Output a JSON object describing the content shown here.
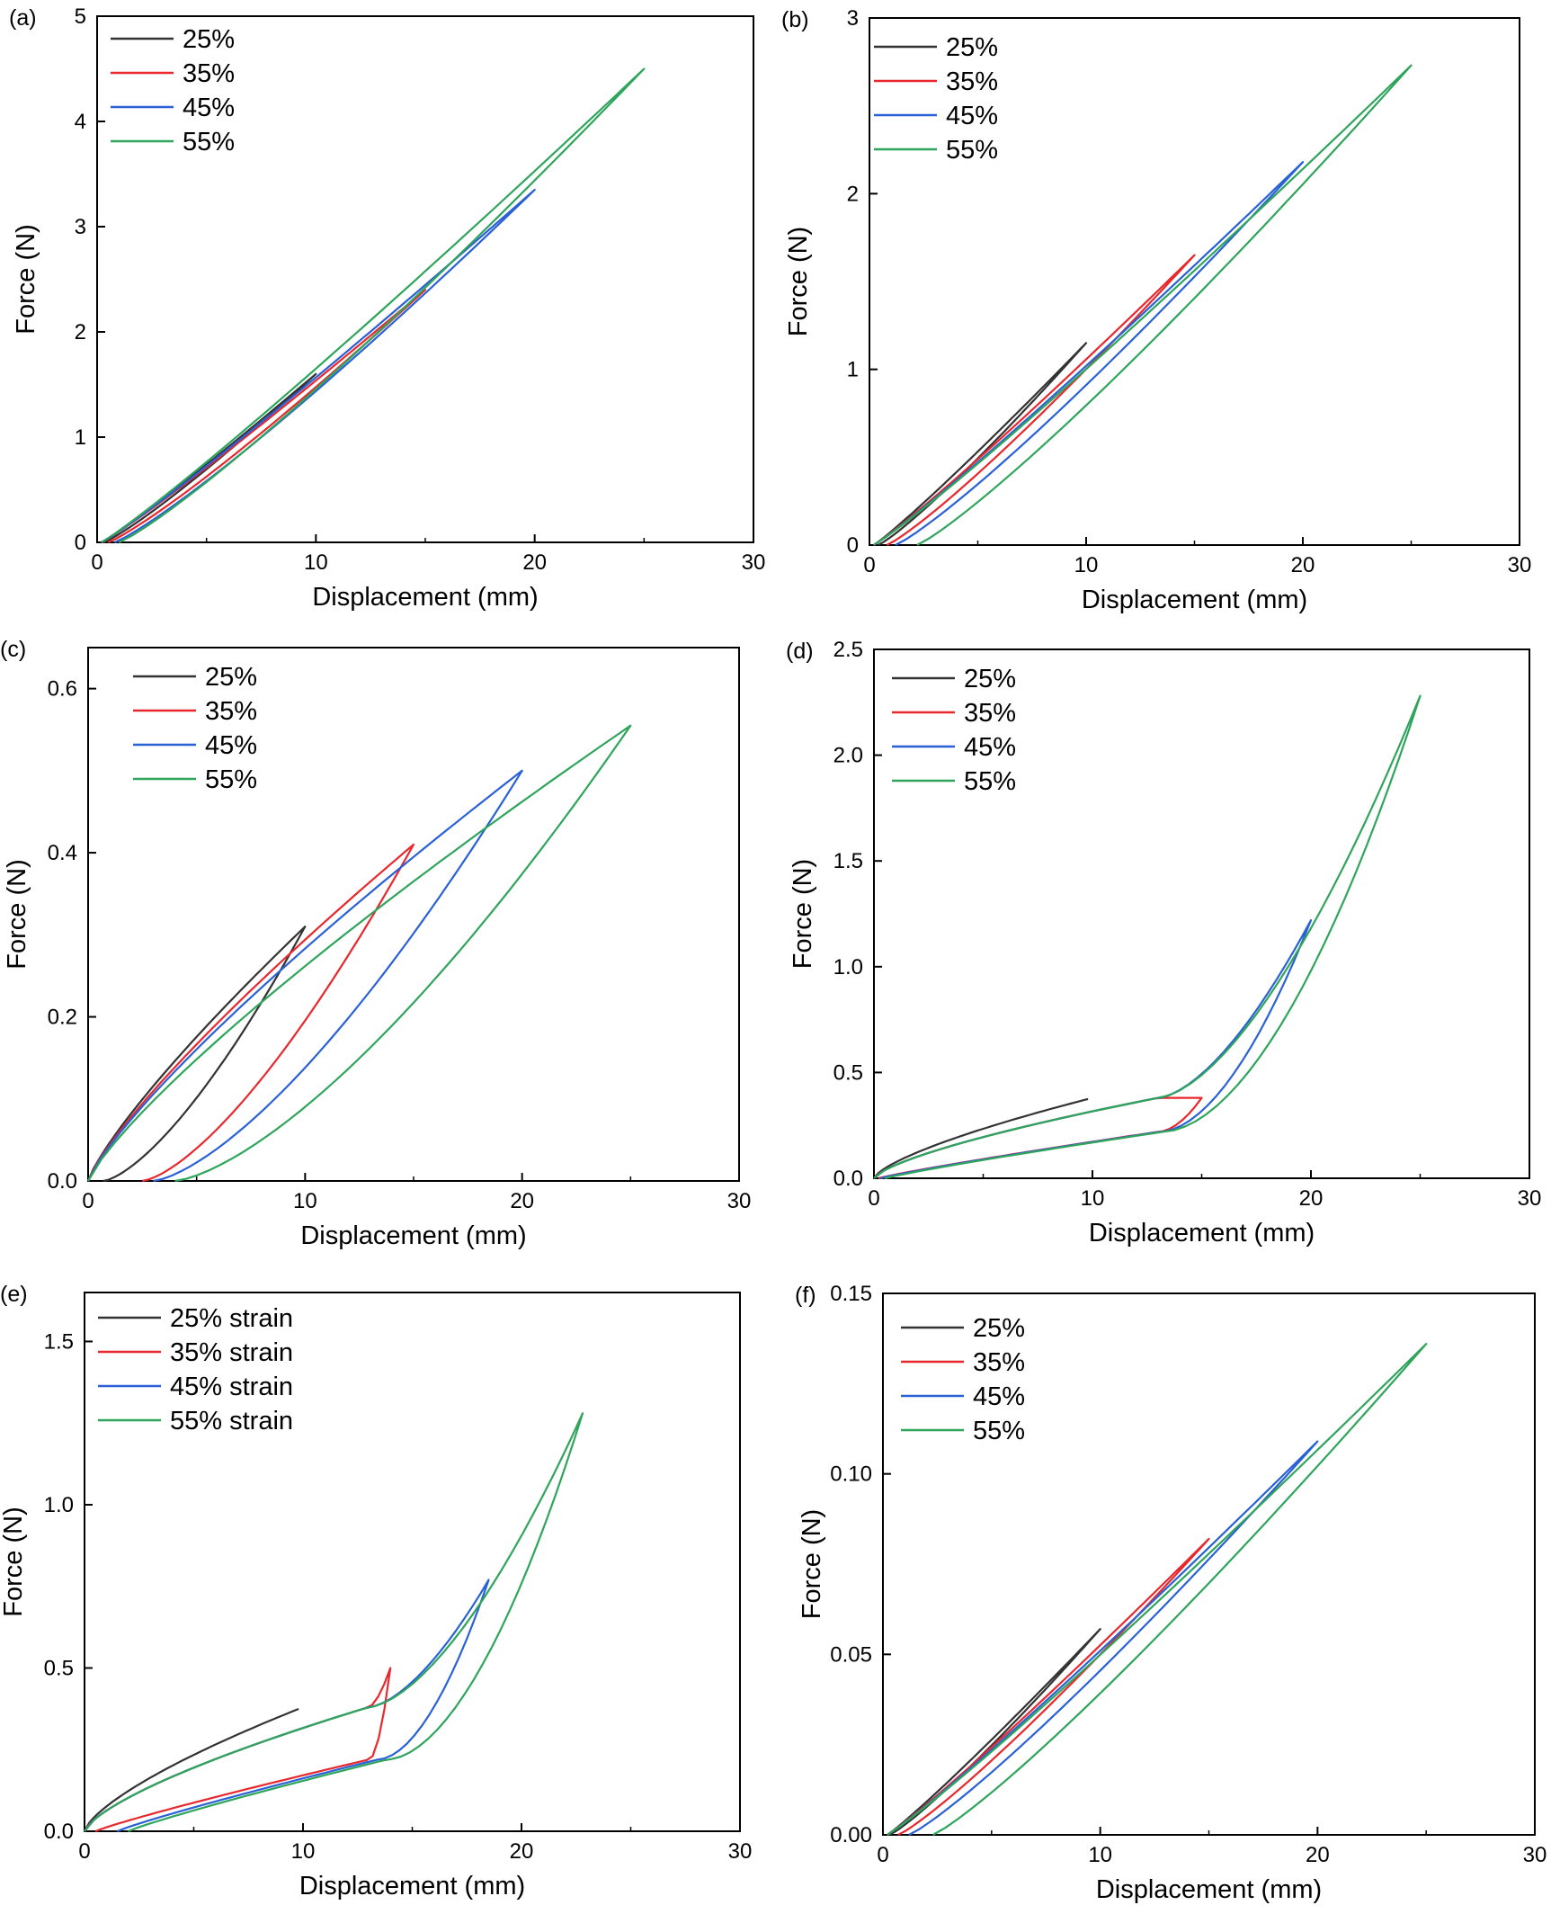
{
  "figure": {
    "x_axis_label": "Displacement (mm)",
    "y_axis_label": "Force (N)"
  },
  "colors": {
    "25%": "#333333",
    "35%": "#e8282d",
    "45%": "#2a61d6",
    "55%": "#2fa55c"
  },
  "chart_data": [
    {
      "panel": "(a)",
      "type": "line",
      "xlabel": "Displacement (mm)",
      "ylabel": "Force (N)",
      "xlim": [
        0,
        30
      ],
      "ylim": [
        0,
        5
      ],
      "xticks": [
        0,
        10,
        20,
        30
      ],
      "yticks": [
        0,
        1,
        2,
        3,
        4,
        5
      ],
      "legend_position": "top-left",
      "series": [
        {
          "name": "25%",
          "max_displacement": 10,
          "peak_force": 1.6,
          "residual_displacement": 0.3,
          "style": "loop"
        },
        {
          "name": "35%",
          "max_displacement": 15,
          "peak_force": 2.4,
          "residual_displacement": 0.5,
          "style": "loop"
        },
        {
          "name": "45%",
          "max_displacement": 20,
          "peak_force": 3.35,
          "residual_displacement": 0.8,
          "style": "loop"
        },
        {
          "name": "55%",
          "max_displacement": 25,
          "peak_force": 4.5,
          "residual_displacement": 1.0,
          "style": "loop"
        }
      ]
    },
    {
      "panel": "(b)",
      "type": "line",
      "xlabel": "Displacement (mm)",
      "ylabel": "Force (N)",
      "xlim": [
        0,
        30
      ],
      "ylim": [
        0,
        3
      ],
      "xticks": [
        0,
        10,
        20,
        30
      ],
      "yticks": [
        0,
        1,
        2,
        3
      ],
      "legend_position": "top-left",
      "series": [
        {
          "name": "25%",
          "max_displacement": 10,
          "peak_force": 1.15,
          "residual_displacement": 0.4,
          "style": "loop"
        },
        {
          "name": "35%",
          "max_displacement": 15,
          "peak_force": 1.65,
          "residual_displacement": 0.8,
          "style": "loop"
        },
        {
          "name": "45%",
          "max_displacement": 20,
          "peak_force": 2.18,
          "residual_displacement": 1.2,
          "style": "loop"
        },
        {
          "name": "55%",
          "max_displacement": 25,
          "peak_force": 2.73,
          "residual_displacement": 2.2,
          "style": "loop"
        }
      ]
    },
    {
      "panel": "(c)",
      "type": "line",
      "xlabel": "Displacement (mm)",
      "ylabel": "Force (N)",
      "xlim": [
        0,
        30
      ],
      "ylim": [
        0,
        0.65
      ],
      "xticks": [
        0,
        10,
        20,
        30
      ],
      "yticks": [
        0.0,
        0.2,
        0.4,
        0.6
      ],
      "legend_position": "top-left",
      "series": [
        {
          "name": "25%",
          "max_displacement": 10,
          "peak_force": 0.31,
          "residual_displacement": 0.7,
          "style": "wide-loop"
        },
        {
          "name": "35%",
          "max_displacement": 15,
          "peak_force": 0.41,
          "residual_displacement": 2.5,
          "style": "wide-loop"
        },
        {
          "name": "45%",
          "max_displacement": 20,
          "peak_force": 0.5,
          "residual_displacement": 3.0,
          "style": "wide-loop"
        },
        {
          "name": "55%",
          "max_displacement": 25,
          "peak_force": 0.555,
          "residual_displacement": 4.0,
          "style": "wide-loop"
        }
      ]
    },
    {
      "panel": "(d)",
      "type": "line",
      "xlabel": "Displacement (mm)",
      "ylabel": "Force (N)",
      "xlim": [
        0,
        30
      ],
      "ylim": [
        0,
        2.5
      ],
      "xticks": [
        0,
        10,
        20,
        30
      ],
      "yticks": [
        0.0,
        0.5,
        1.0,
        1.5,
        2.0,
        2.5
      ],
      "legend_position": "top-left",
      "series": [
        {
          "name": "25%",
          "max_displacement": 10,
          "peak_force": 0.38,
          "residual_displacement": 0.2,
          "style": "plateau"
        },
        {
          "name": "35%",
          "max_displacement": 15,
          "peak_force": 0.38,
          "residual_displacement": 0.2,
          "style": "plateau"
        },
        {
          "name": "45%",
          "max_displacement": 20,
          "peak_force": 1.22,
          "residual_displacement": 0.3,
          "style": "plateau"
        },
        {
          "name": "55%",
          "max_displacement": 25,
          "peak_force": 2.28,
          "residual_displacement": 0.5,
          "style": "plateau"
        }
      ]
    },
    {
      "panel": "(e)",
      "type": "line",
      "xlabel": "Displacement (mm)",
      "ylabel": "Force (N)",
      "xlim": [
        0,
        30
      ],
      "ylim": [
        0,
        1.65
      ],
      "xticks": [
        0,
        10,
        20,
        30
      ],
      "yticks": [
        0.0,
        0.5,
        1.0,
        1.5
      ],
      "legend_position": "top-left",
      "series": [
        {
          "name": "25% strain",
          "max_displacement": 10,
          "peak_force": 0.44,
          "residual_displacement": 0.2,
          "style": "plateau"
        },
        {
          "name": "35% strain",
          "max_displacement": 14,
          "peak_force": 0.5,
          "residual_displacement": 0.5,
          "style": "plateau"
        },
        {
          "name": "45% strain",
          "max_displacement": 18.5,
          "peak_force": 0.77,
          "residual_displacement": 1.5,
          "style": "plateau"
        },
        {
          "name": "55% strain",
          "max_displacement": 22.8,
          "peak_force": 1.28,
          "residual_displacement": 2.0,
          "style": "plateau"
        }
      ]
    },
    {
      "panel": "(f)",
      "type": "line",
      "xlabel": "Displacement (mm)",
      "ylabel": "Force (N)",
      "xlim": [
        0,
        30
      ],
      "ylim": [
        0,
        0.15
      ],
      "xticks": [
        0,
        10,
        20,
        30
      ],
      "yticks": [
        0.0,
        0.05,
        0.1,
        0.15
      ],
      "ytick_labels": [
        "0.00",
        "0.05",
        "0.10",
        "0.15"
      ],
      "legend_position": "top-left",
      "series": [
        {
          "name": "25%",
          "max_displacement": 10,
          "peak_force": 0.057,
          "residual_displacement": 0.3,
          "style": "loop"
        },
        {
          "name": "35%",
          "max_displacement": 15,
          "peak_force": 0.082,
          "residual_displacement": 0.7,
          "style": "loop"
        },
        {
          "name": "45%",
          "max_displacement": 20,
          "peak_force": 0.109,
          "residual_displacement": 1.2,
          "style": "loop"
        },
        {
          "name": "55%",
          "max_displacement": 25,
          "peak_force": 0.136,
          "residual_displacement": 2.3,
          "style": "loop"
        }
      ]
    }
  ]
}
